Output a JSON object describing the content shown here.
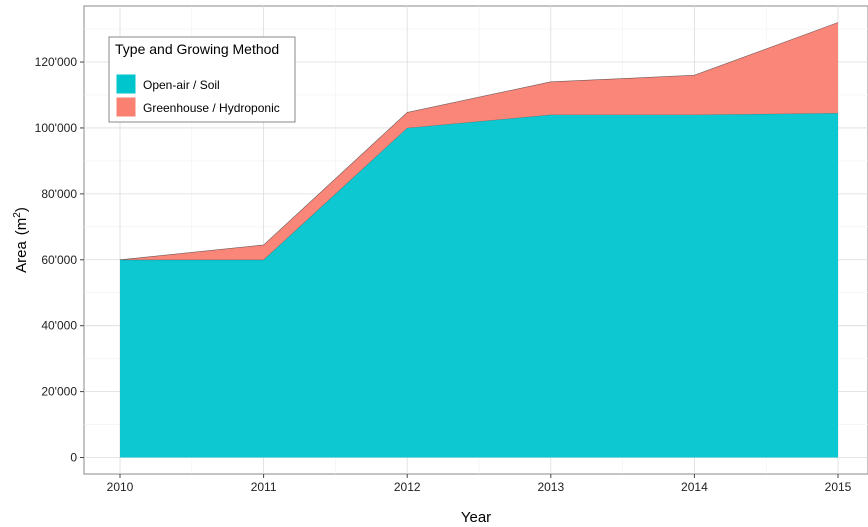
{
  "chart_data": {
    "type": "area",
    "stacked": true,
    "x": [
      2010,
      2011,
      2012,
      2013,
      2014,
      2015
    ],
    "xlabel": "Year",
    "ylabel": "Area",
    "ylabel_unit_base": "m",
    "ylabel_unit_exp": "2",
    "ylim": [
      -5000,
      137000
    ],
    "yticks": [
      0,
      20000,
      40000,
      60000,
      80000,
      100000,
      120000
    ],
    "ytick_labels": [
      "0",
      "20'000",
      "40'000",
      "60'000",
      "80'000",
      "100'000",
      "120'000"
    ],
    "xtick_labels": [
      "2010",
      "2011",
      "2012",
      "2013",
      "2014",
      "2015"
    ],
    "grid": true,
    "legend": {
      "title": "Type and Growing Method",
      "placement": "top-left"
    },
    "series": [
      {
        "name": "Open-air / Soil",
        "color": "#00C5CD",
        "values": [
          60000,
          60000,
          100000,
          104000,
          104000,
          104500
        ]
      },
      {
        "name": "Greenhouse / Hydroponic",
        "color": "#FA8072",
        "values": [
          0,
          4500,
          4700,
          10000,
          12000,
          27500
        ]
      }
    ]
  }
}
